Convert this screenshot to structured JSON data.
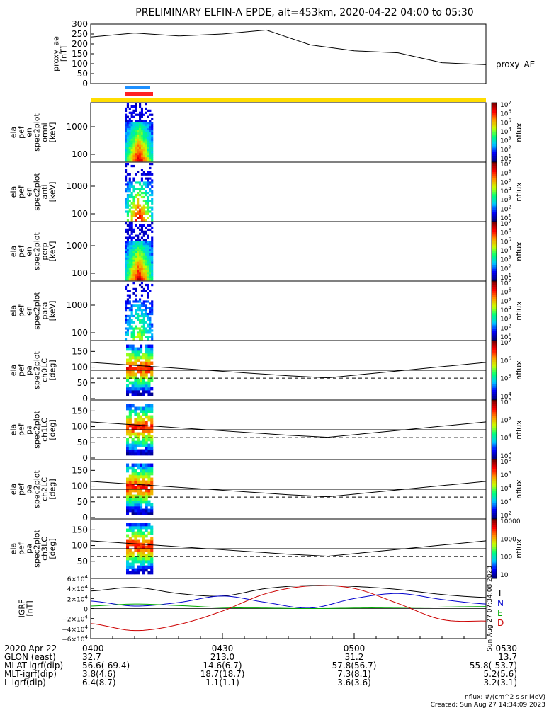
{
  "title": "PRELIMINARY ELFIN-A EPDE, alt=453km, 2020-04-22 04:00 to 05:30",
  "panels": {
    "ae": {
      "ylabel": [
        "proxy_ae",
        "[nT]"
      ],
      "legend": "proxy_AE",
      "yticks": [
        "300",
        "250",
        "200",
        "150",
        "100",
        "50",
        "0"
      ]
    },
    "spec": [
      {
        "ylabel": [
          "ela",
          "pef",
          "en",
          "spec2plot",
          "omni",
          "[keV]"
        ],
        "yticks": [
          "1000",
          "100"
        ],
        "zlabel": "nflux",
        "cbar": [
          "10^7",
          "10^6",
          "10^5",
          "10^4",
          "10^3",
          "10^2",
          "10^1"
        ]
      },
      {
        "ylabel": [
          "ela",
          "pef",
          "en",
          "spec2plot",
          "anti",
          "[keV]"
        ],
        "yticks": [
          "1000",
          "100"
        ],
        "zlabel": "nflux",
        "cbar": [
          "10^7",
          "10^6",
          "10^5",
          "10^4",
          "10^3",
          "10^2",
          "10^1"
        ]
      },
      {
        "ylabel": [
          "ela",
          "pef",
          "en",
          "spec2plot",
          "perp",
          "[keV]"
        ],
        "yticks": [
          "1000",
          "100"
        ],
        "zlabel": "nflux",
        "cbar": [
          "10^7",
          "10^6",
          "10^5",
          "10^4",
          "10^3",
          "10^2",
          "10^1"
        ]
      },
      {
        "ylabel": [
          "ela",
          "pef",
          "en",
          "spec2plot",
          "para",
          "[keV]"
        ],
        "yticks": [
          "1000",
          "100"
        ],
        "zlabel": "nflux",
        "cbar": [
          "10^7",
          "10^6",
          "10^5",
          "10^4",
          "10^3",
          "10^2",
          "10^1"
        ]
      }
    ],
    "pa": [
      {
        "ylabel": [
          "ela",
          "pef",
          "pa",
          "spec2plot",
          "ch0LC",
          "[deg]"
        ],
        "yticks": [
          "150",
          "100",
          "50",
          "0"
        ],
        "zlabel": "nflux",
        "cbar": [
          "10^7",
          "10^6",
          "10^5",
          "10^4"
        ]
      },
      {
        "ylabel": [
          "ela",
          "pef",
          "pa",
          "spec2plot",
          "ch1LC",
          "[deg]"
        ],
        "yticks": [
          "150",
          "100",
          "50",
          "0"
        ],
        "zlabel": "nflux",
        "cbar": [
          "10^6",
          "10^5",
          "10^4",
          "10^3"
        ]
      },
      {
        "ylabel": [
          "ela",
          "pef",
          "pa",
          "spec2plot",
          "ch2LC",
          "[deg]"
        ],
        "yticks": [
          "150",
          "100",
          "50",
          "0"
        ],
        "zlabel": "nflux",
        "cbar": [
          "10^6",
          "10^5",
          "10^4",
          "10^3",
          "10^2"
        ]
      },
      {
        "ylabel": [
          "ela",
          "pef",
          "pa",
          "spec2plot",
          "ch3LC",
          "[deg]"
        ],
        "yticks": [
          "150",
          "100",
          "50"
        ],
        "zlabel": "nflux",
        "cbar": [
          "10000",
          "1000",
          "100",
          "10"
        ]
      }
    ],
    "igrf": {
      "ylabel": [
        "IGRF",
        "[nT]"
      ],
      "yticks": [
        "6×10^4",
        "4×10^4",
        "2×10^4",
        "0",
        "−2×10^4",
        "−4×10^4",
        "−6×10^4"
      ],
      "legend": [
        "T",
        "N",
        "E",
        "D"
      ],
      "side_note": "Sun Aug 27 07:34:08 2023"
    }
  },
  "colors": {
    "T": "#000000",
    "N": "#0000cc",
    "E": "#00aa00",
    "D": "#cc0000",
    "flag": "#ffdd00"
  },
  "footer": {
    "rows": [
      {
        "label": "2020 Apr 22",
        "vals": [
          "0400",
          "0430",
          "0500",
          "0530"
        ]
      },
      {
        "label": "GLON (east)",
        "vals": [
          "32.7",
          "213.0",
          "31.2",
          "13.7"
        ]
      },
      {
        "label": "MLAT-igrf(dip)",
        "vals": [
          "56.6(-69.4)",
          "14.6(6.7)",
          "57.8(56.7)",
          "-55.8(-53.7)"
        ]
      },
      {
        "label": "MLT-igrf(dip)",
        "vals": [
          "3.8(4.6)",
          "18.7(18.7)",
          "7.3(8.1)",
          "5.2(5.6)"
        ]
      },
      {
        "label": "L-igrf(dip)",
        "vals": [
          "6.4(8.7)",
          "1.1(1.1)",
          "3.6(3.6)",
          "3.2(3.1)"
        ]
      }
    ],
    "units": "nflux: #/(cm^2 s sr MeV)",
    "created": "Created: Sun Aug 27 14:34:09 2023"
  },
  "chart_data": {
    "type": "line",
    "x": [
      "04:00",
      "04:10",
      "04:20",
      "04:30",
      "04:40",
      "04:50",
      "05:00",
      "05:10",
      "05:20",
      "05:30"
    ],
    "series": [
      {
        "name": "proxy_AE",
        "values": [
          235,
          255,
          240,
          250,
          270,
          195,
          165,
          155,
          105,
          95
        ]
      },
      {
        "name": "T",
        "values": [
          35000,
          42000,
          30000,
          25000,
          40000,
          46000,
          44000,
          38000,
          28000,
          22000
        ]
      },
      {
        "name": "N",
        "values": [
          15000,
          5000,
          12000,
          25000,
          12000,
          1000,
          20000,
          30000,
          18000,
          9000
        ]
      },
      {
        "name": "E",
        "values": [
          5000,
          9000,
          6000,
          2000,
          1000,
          0,
          1000,
          2000,
          3000,
          4000
        ]
      },
      {
        "name": "D",
        "values": [
          -30000,
          -44000,
          -32000,
          -5000,
          30000,
          45000,
          40000,
          10000,
          -22000,
          -25000
        ]
      }
    ],
    "ae_ylim": [
      0,
      300
    ],
    "igrf_ylim": [
      -60000,
      60000
    ]
  }
}
